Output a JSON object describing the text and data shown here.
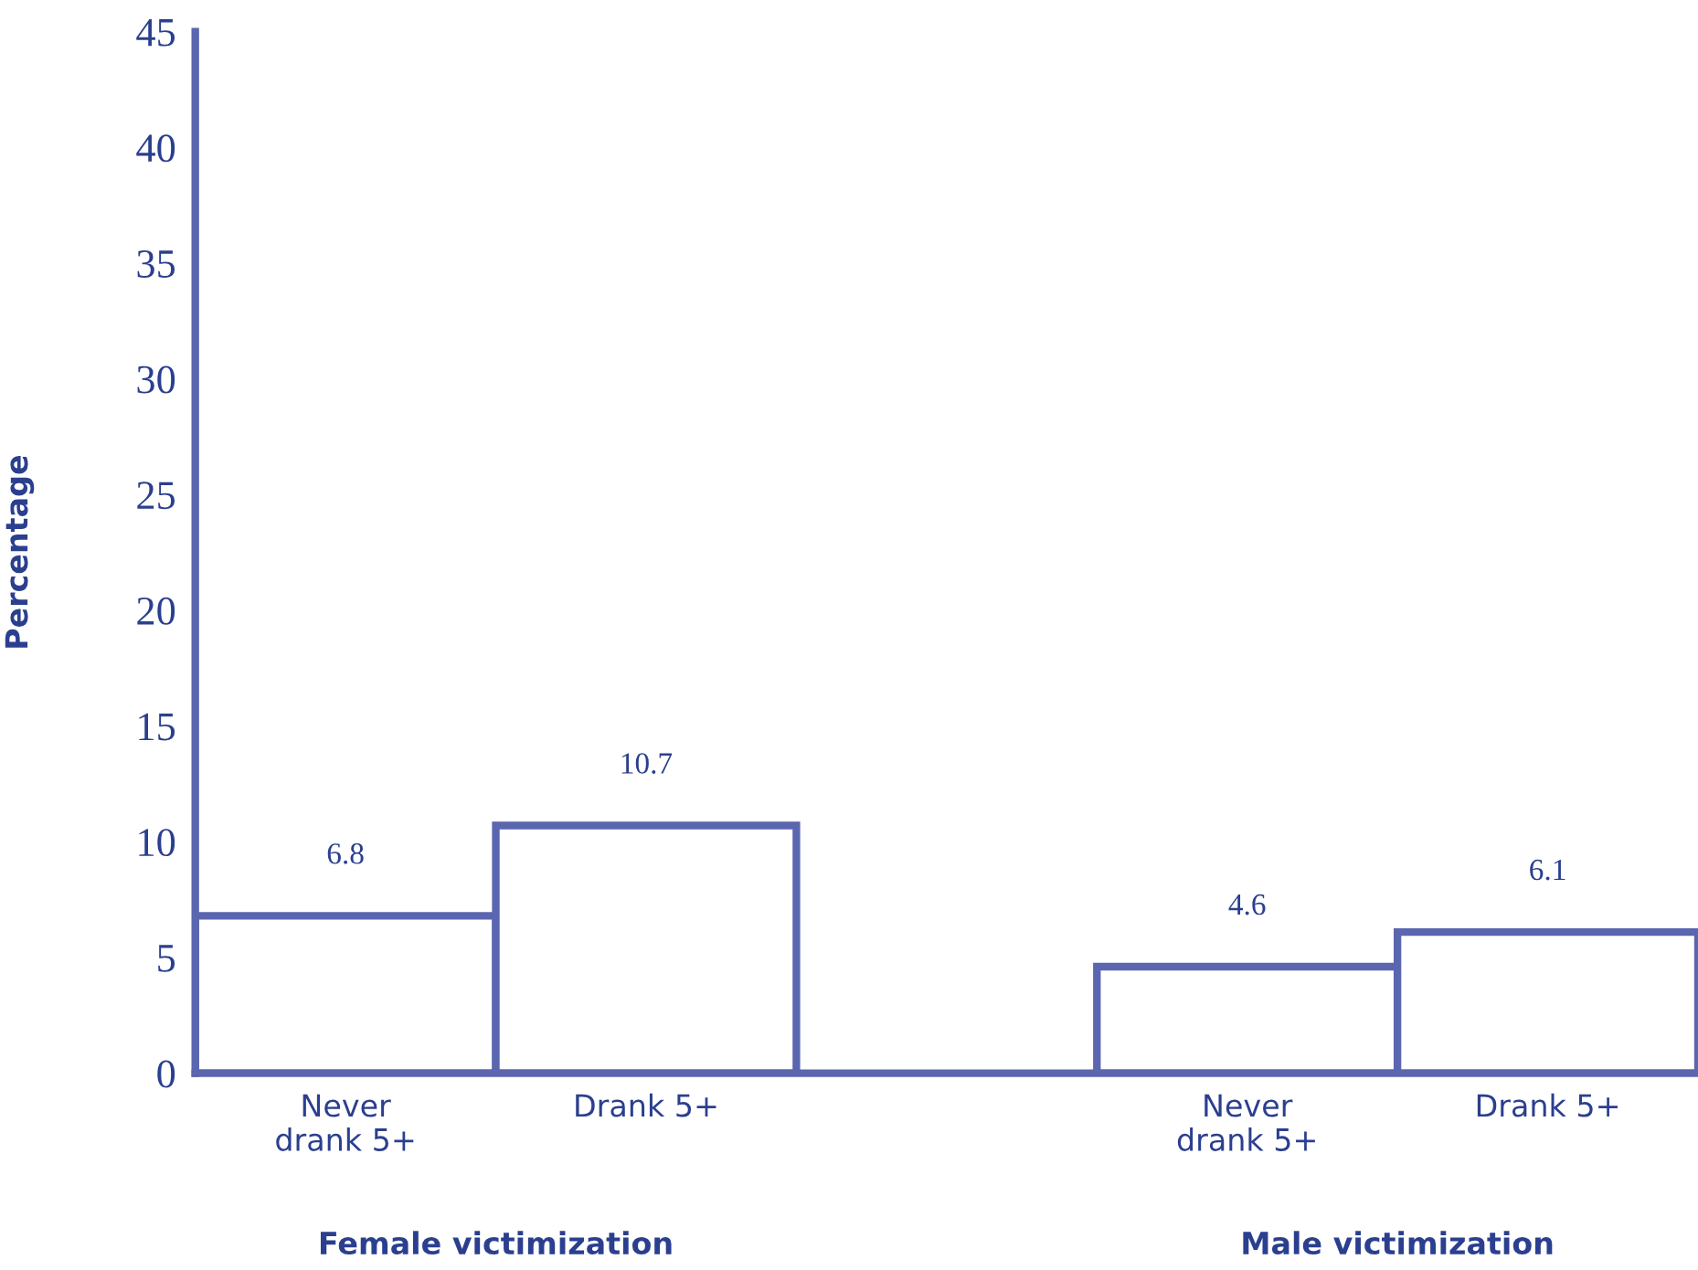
{
  "chart_data": {
    "type": "bar",
    "ylabel": "Percentage",
    "categories": [
      "Never\ndrank 5+",
      "Drank 5+",
      null,
      "Never\ndrank 5+",
      "Drank 5+"
    ],
    "values": [
      6.8,
      10.7,
      null,
      4.6,
      6.1
    ],
    "color": "#5b66b0",
    "data_labels": true,
    "ylim": [
      0,
      45
    ],
    "yticks": [
      0,
      5,
      10,
      15,
      20,
      25,
      30,
      35,
      40,
      45
    ],
    "grid": false,
    "legend": false,
    "annotations": [
      "Female victimization",
      "Male victimization"
    ]
  }
}
